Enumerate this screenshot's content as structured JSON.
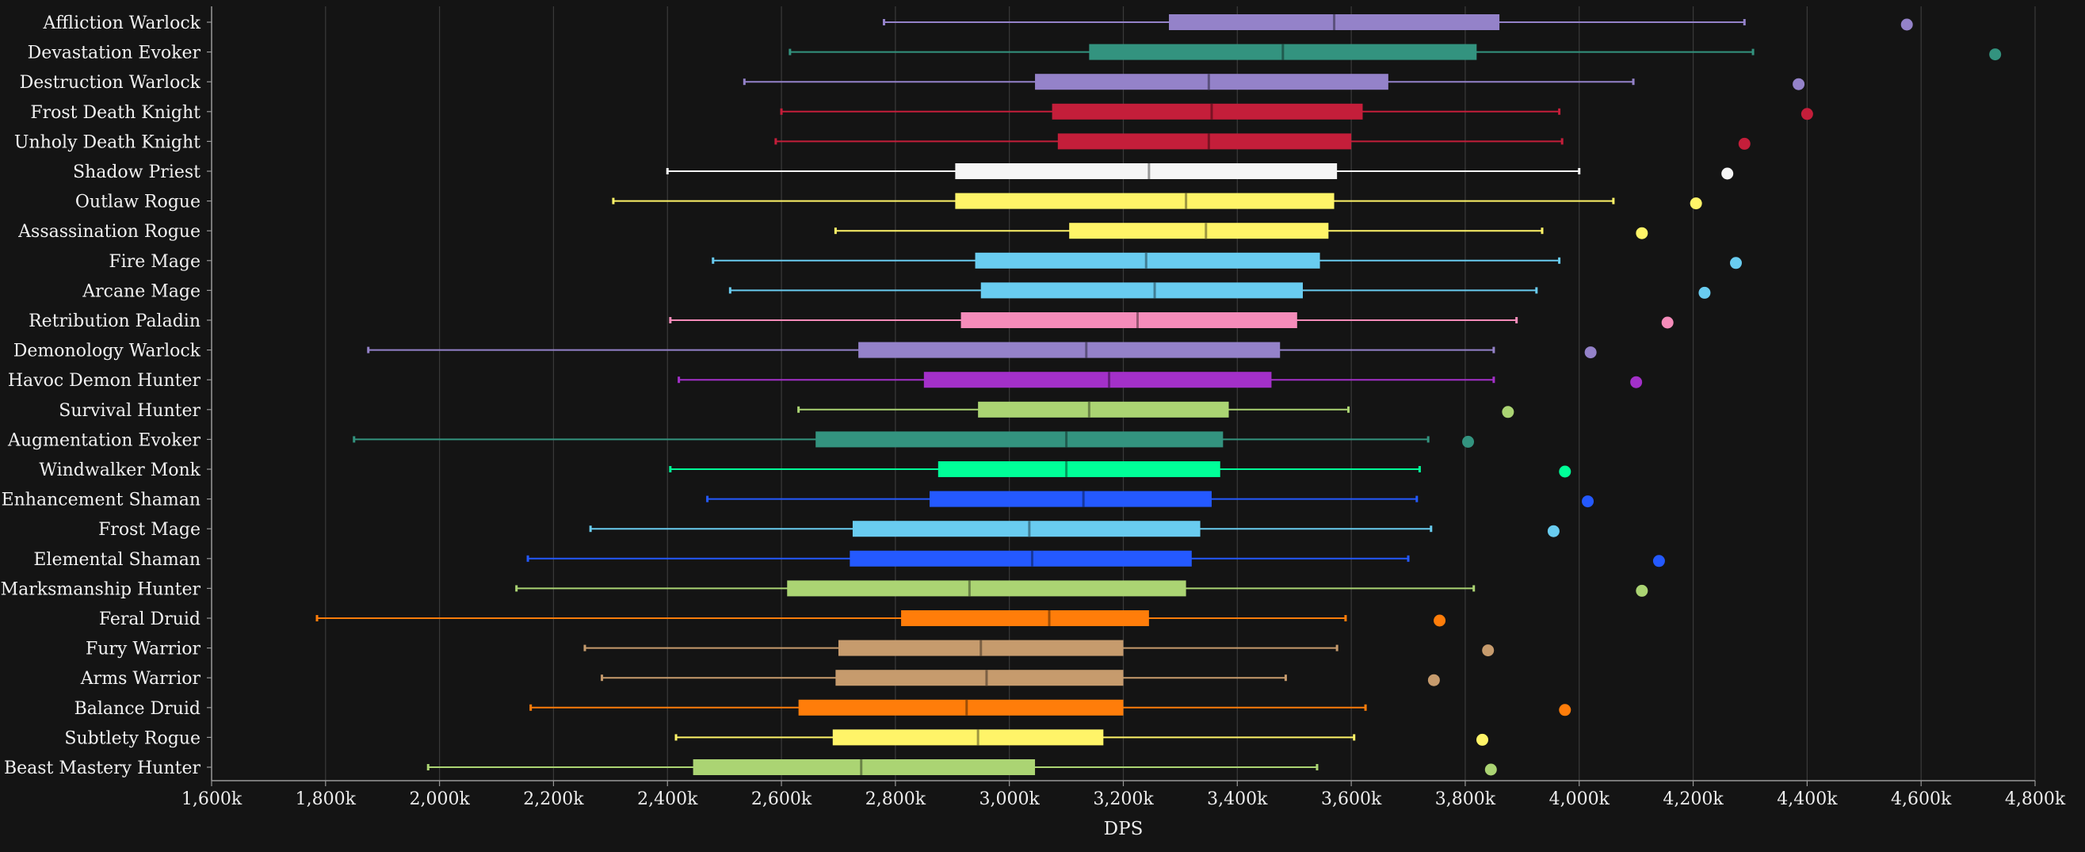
{
  "chart_data": {
    "type": "boxplot",
    "xlabel": "DPS",
    "ylabel": "",
    "xlim": [
      1600,
      4800
    ],
    "x_ticks": [
      {
        "v": 1600,
        "label": "1,600k"
      },
      {
        "v": 1800,
        "label": "1,800k"
      },
      {
        "v": 2000,
        "label": "2,000k"
      },
      {
        "v": 2200,
        "label": "2,200k"
      },
      {
        "v": 2400,
        "label": "2,400k"
      },
      {
        "v": 2600,
        "label": "2,600k"
      },
      {
        "v": 2800,
        "label": "2,800k"
      },
      {
        "v": 3000,
        "label": "3,000k"
      },
      {
        "v": 3200,
        "label": "3,200k"
      },
      {
        "v": 3400,
        "label": "3,400k"
      },
      {
        "v": 3600,
        "label": "3,600k"
      },
      {
        "v": 3800,
        "label": "3,800k"
      },
      {
        "v": 4000,
        "label": "4,000k"
      },
      {
        "v": 4200,
        "label": "4,200k"
      },
      {
        "v": 4400,
        "label": "4,400k"
      },
      {
        "v": 4600,
        "label": "4,600k"
      },
      {
        "v": 4800,
        "label": "4,800k"
      }
    ],
    "grid": true,
    "units": "thousands of DPS",
    "series": [
      {
        "name": "Affliction Warlock",
        "color": "#9482c9",
        "min": 2780,
        "q1": 3280,
        "median": 3570,
        "q3": 3860,
        "max": 4290,
        "outlier": 4575
      },
      {
        "name": "Devastation Evoker",
        "color": "#33937f",
        "min": 2615,
        "q1": 3140,
        "median": 3480,
        "q3": 3820,
        "max": 4305,
        "outlier": 4730
      },
      {
        "name": "Destruction Warlock",
        "color": "#9482c9",
        "min": 2535,
        "q1": 3045,
        "median": 3350,
        "q3": 3665,
        "max": 4095,
        "outlier": 4385
      },
      {
        "name": "Frost Death Knight",
        "color": "#c41e3a",
        "min": 2600,
        "q1": 3075,
        "median": 3355,
        "q3": 3620,
        "max": 3965,
        "outlier": 4400
      },
      {
        "name": "Unholy Death Knight",
        "color": "#c41e3a",
        "min": 2590,
        "q1": 3085,
        "median": 3350,
        "q3": 3600,
        "max": 3970,
        "outlier": 4290
      },
      {
        "name": "Shadow Priest",
        "color": "#f5f5f5",
        "min": 2400,
        "q1": 2905,
        "median": 3245,
        "q3": 3575,
        "max": 4000,
        "outlier": 4260
      },
      {
        "name": "Outlaw Rogue",
        "color": "#fff468",
        "min": 2305,
        "q1": 2905,
        "median": 3310,
        "q3": 3570,
        "max": 4060,
        "outlier": 4205
      },
      {
        "name": "Assassination Rogue",
        "color": "#fff468",
        "min": 2695,
        "q1": 3105,
        "median": 3345,
        "q3": 3560,
        "max": 3935,
        "outlier": 4110
      },
      {
        "name": "Fire Mage",
        "color": "#69ccf0",
        "min": 2480,
        "q1": 2940,
        "median": 3240,
        "q3": 3545,
        "max": 3965,
        "outlier": 4275
      },
      {
        "name": "Arcane Mage",
        "color": "#69ccf0",
        "min": 2510,
        "q1": 2950,
        "median": 3255,
        "q3": 3515,
        "max": 3925,
        "outlier": 4220
      },
      {
        "name": "Retribution Paladin",
        "color": "#f58cba",
        "min": 2405,
        "q1": 2915,
        "median": 3225,
        "q3": 3505,
        "max": 3890,
        "outlier": 4155
      },
      {
        "name": "Demonology Warlock",
        "color": "#9482c9",
        "min": 1875,
        "q1": 2735,
        "median": 3135,
        "q3": 3475,
        "max": 3850,
        "outlier": 4020
      },
      {
        "name": "Havoc Demon Hunter",
        "color": "#a330c9",
        "min": 2420,
        "q1": 2850,
        "median": 3175,
        "q3": 3460,
        "max": 3850,
        "outlier": 4100
      },
      {
        "name": "Survival Hunter",
        "color": "#abd473",
        "min": 2630,
        "q1": 2945,
        "median": 3140,
        "q3": 3385,
        "max": 3595,
        "outlier": 3875
      },
      {
        "name": "Augmentation Evoker",
        "color": "#33937f",
        "min": 1850,
        "q1": 2660,
        "median": 3100,
        "q3": 3375,
        "max": 3735,
        "outlier": 3805
      },
      {
        "name": "Windwalker Monk",
        "color": "#00ff98",
        "min": 2405,
        "q1": 2875,
        "median": 3100,
        "q3": 3370,
        "max": 3720,
        "outlier": 3975
      },
      {
        "name": "Enhancement Shaman",
        "color": "#2459ff",
        "min": 2470,
        "q1": 2860,
        "median": 3130,
        "q3": 3355,
        "max": 3715,
        "outlier": 4015
      },
      {
        "name": "Frost Mage",
        "color": "#69ccf0",
        "min": 2265,
        "q1": 2725,
        "median": 3035,
        "q3": 3335,
        "max": 3740,
        "outlier": 3955
      },
      {
        "name": "Elemental Shaman",
        "color": "#2459ff",
        "min": 2155,
        "q1": 2720,
        "median": 3040,
        "q3": 3320,
        "max": 3700,
        "outlier": 4140
      },
      {
        "name": "Marksmanship Hunter",
        "color": "#abd473",
        "min": 2135,
        "q1": 2610,
        "median": 2930,
        "q3": 3310,
        "max": 3815,
        "outlier": 4110
      },
      {
        "name": "Feral Druid",
        "color": "#ff7d0a",
        "min": 1785,
        "q1": 2810,
        "median": 3070,
        "q3": 3245,
        "max": 3590,
        "outlier": 3755
      },
      {
        "name": "Fury Warrior",
        "color": "#c69b6d",
        "min": 2255,
        "q1": 2700,
        "median": 2950,
        "q3": 3200,
        "max": 3575,
        "outlier": 3840
      },
      {
        "name": "Arms Warrior",
        "color": "#c69b6d",
        "min": 2285,
        "q1": 2695,
        "median": 2960,
        "q3": 3200,
        "max": 3485,
        "outlier": 3745
      },
      {
        "name": "Balance Druid",
        "color": "#ff7d0a",
        "min": 2160,
        "q1": 2630,
        "median": 2925,
        "q3": 3200,
        "max": 3625,
        "outlier": 3975
      },
      {
        "name": "Subtlety Rogue",
        "color": "#fff468",
        "min": 2415,
        "q1": 2690,
        "median": 2945,
        "q3": 3165,
        "max": 3605,
        "outlier": 3830
      },
      {
        "name": "Beast Mastery Hunter",
        "color": "#abd473",
        "min": 1980,
        "q1": 2445,
        "median": 2740,
        "q3": 3045,
        "max": 3540,
        "outlier": 3845
      }
    ]
  }
}
